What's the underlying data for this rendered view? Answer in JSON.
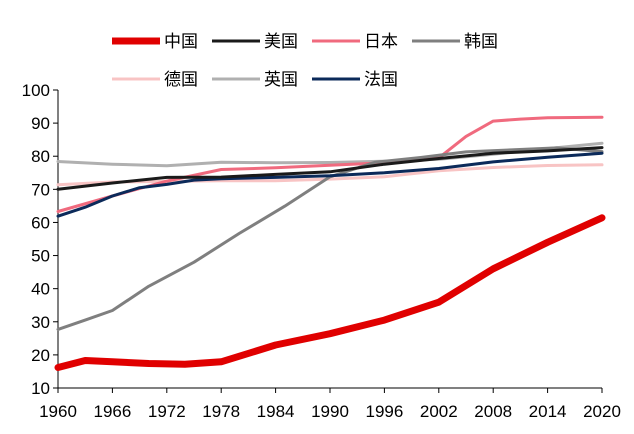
{
  "chart_data": {
    "type": "line",
    "title": "",
    "xlabel": "",
    "ylabel": "",
    "xlim": [
      1960,
      2020
    ],
    "ylim": [
      10,
      100
    ],
    "xticks": [
      1960,
      1966,
      1972,
      1978,
      1984,
      1990,
      1996,
      2002,
      2008,
      2014,
      2020
    ],
    "yticks": [
      10,
      20,
      30,
      40,
      50,
      60,
      70,
      80,
      90,
      100
    ],
    "grid": false,
    "legend": "top",
    "series": [
      {
        "name": "中国",
        "color": "#e00000",
        "x": [
          1960,
          1963,
          1966,
          1970,
          1974,
          1978,
          1984,
          1990,
          1996,
          2002,
          2008,
          2014,
          2020
        ],
        "values": [
          16.2,
          18.3,
          17.9,
          17.4,
          17.2,
          17.9,
          23.0,
          26.4,
          30.5,
          35.9,
          46.0,
          54.0,
          61.4
        ]
      },
      {
        "name": "美国",
        "color": "#1a1a1a",
        "x": [
          1960,
          1966,
          1972,
          1978,
          1984,
          1990,
          1996,
          2002,
          2008,
          2014,
          2020
        ],
        "values": [
          70.0,
          71.9,
          73.6,
          73.7,
          74.5,
          75.3,
          77.6,
          79.3,
          80.9,
          81.6,
          82.6
        ]
      },
      {
        "name": "日本",
        "color": "#f06a7e",
        "x": [
          1960,
          1966,
          1972,
          1978,
          1984,
          1990,
          1996,
          2000,
          2002,
          2005,
          2008,
          2011,
          2014,
          2020
        ],
        "values": [
          63.3,
          68.0,
          72.5,
          76.0,
          76.5,
          77.3,
          78.0,
          78.8,
          79.5,
          86.0,
          90.6,
          91.2,
          91.6,
          91.8
        ]
      },
      {
        "name": "韩国",
        "color": "#7f7f7f",
        "x": [
          1960,
          1963,
          1966,
          1970,
          1975,
          1980,
          1985,
          1990,
          1995,
          2000,
          2005,
          2010,
          2015,
          2020
        ],
        "values": [
          27.7,
          30.5,
          33.4,
          40.7,
          48.0,
          56.7,
          64.9,
          73.8,
          78.2,
          79.6,
          81.3,
          81.9,
          82.5,
          81.4
        ]
      },
      {
        "name": "德国",
        "color": "#f8c4c4",
        "x": [
          1960,
          1966,
          1972,
          1978,
          1984,
          1990,
          1996,
          2002,
          2008,
          2014,
          2020
        ],
        "values": [
          71.4,
          72.2,
          72.4,
          72.6,
          72.6,
          73.1,
          73.8,
          75.6,
          76.6,
          77.2,
          77.4
        ]
      },
      {
        "name": "英国",
        "color": "#b0b0b0",
        "x": [
          1960,
          1966,
          1972,
          1978,
          1984,
          1990,
          1996,
          2002,
          2008,
          2014,
          2020
        ],
        "values": [
          78.4,
          77.6,
          77.1,
          78.2,
          78.0,
          78.1,
          78.5,
          79.1,
          80.6,
          82.3,
          83.9
        ]
      },
      {
        "name": "法国",
        "color": "#0b2a5a",
        "x": [
          1960,
          1963,
          1966,
          1969,
          1972,
          1975,
          1978,
          1984,
          1990,
          1996,
          2002,
          2008,
          2014,
          2020
        ],
        "values": [
          61.9,
          64.6,
          68.0,
          70.5,
          71.5,
          72.8,
          73.2,
          73.6,
          74.1,
          75.0,
          76.3,
          78.3,
          79.7,
          80.9
        ]
      }
    ]
  }
}
